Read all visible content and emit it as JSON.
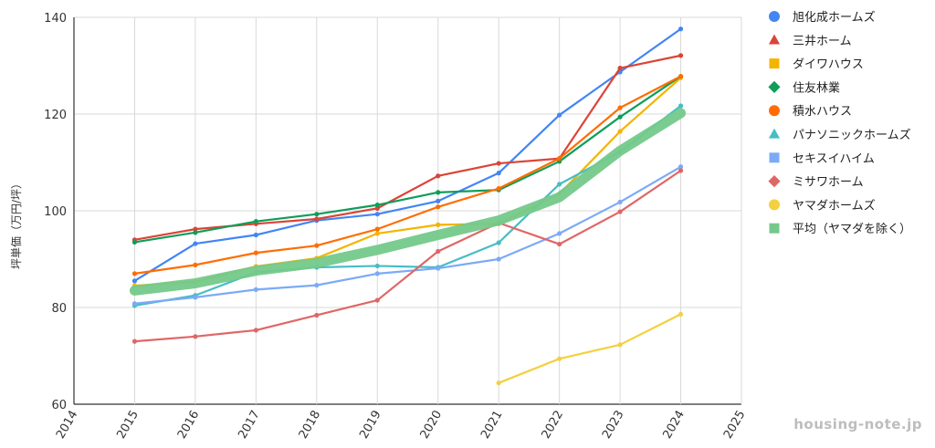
{
  "chart_data": {
    "type": "line",
    "title": "",
    "xlabel": "",
    "ylabel": "坪単価（万円/坪）",
    "xlim": [
      2014,
      2025
    ],
    "ylim": [
      60,
      140
    ],
    "xticks": [
      2014,
      2015,
      2016,
      2017,
      2018,
      2019,
      2020,
      2021,
      2022,
      2023,
      2024,
      2025
    ],
    "yticks": [
      60,
      80,
      100,
      120,
      140
    ],
    "grid": true,
    "legend_position": "right",
    "series": [
      {
        "name": "旭化成ホームズ",
        "color": "#4285f4",
        "marker": "circle",
        "x": [
          2015,
          2016,
          2017,
          2018,
          2019,
          2020,
          2021,
          2022,
          2023,
          2024
        ],
        "y": [
          85.5,
          93.2,
          95.0,
          98.0,
          99.3,
          102.0,
          107.8,
          119.8,
          128.7,
          137.6
        ]
      },
      {
        "name": "三井ホーム",
        "color": "#db4437",
        "marker": "triangle",
        "x": [
          2015,
          2016,
          2017,
          2018,
          2019,
          2020,
          2021,
          2022,
          2023,
          2024
        ],
        "y": [
          94.0,
          96.2,
          97.3,
          98.3,
          100.5,
          107.2,
          109.8,
          110.8,
          129.5,
          132.1
        ]
      },
      {
        "name": "ダイワハウス",
        "color": "#f4b400",
        "marker": "square",
        "x": [
          2015,
          2016,
          2017,
          2018,
          2019,
          2020,
          2021,
          2022,
          2023,
          2024
        ],
        "y": [
          84.5,
          85.3,
          88.5,
          90.2,
          95.3,
          97.1,
          97.3,
          103.5,
          116.4,
          127.5
        ]
      },
      {
        "name": "住友林業",
        "color": "#0f9d58",
        "marker": "diamond",
        "x": [
          2015,
          2016,
          2017,
          2018,
          2019,
          2020,
          2021,
          2022,
          2023,
          2024
        ],
        "y": [
          93.5,
          95.5,
          97.8,
          99.3,
          101.2,
          103.8,
          104.3,
          110.2,
          119.4,
          127.8
        ]
      },
      {
        "name": "積水ハウス",
        "color": "#ff6d00",
        "marker": "circle",
        "x": [
          2015,
          2016,
          2017,
          2018,
          2019,
          2020,
          2021,
          2022,
          2023,
          2024
        ],
        "y": [
          87.0,
          88.8,
          91.3,
          92.8,
          96.2,
          100.8,
          104.6,
          110.8,
          121.3,
          127.8
        ]
      },
      {
        "name": "パナソニックホームズ",
        "color": "#46bdc6",
        "marker": "triangle",
        "x": [
          2015,
          2016,
          2017,
          2018,
          2019,
          2020,
          2021,
          2022,
          2023,
          2024
        ],
        "y": [
          80.4,
          82.5,
          87.3,
          88.3,
          88.6,
          88.3,
          93.4,
          105.5,
          112.2,
          121.7
        ]
      },
      {
        "name": "セキスイハイム",
        "color": "#7baaf7",
        "marker": "square",
        "x": [
          2015,
          2016,
          2017,
          2018,
          2019,
          2020,
          2021,
          2022,
          2023,
          2024
        ],
        "y": [
          80.8,
          82.1,
          83.7,
          84.6,
          87.0,
          88.1,
          90.0,
          95.3,
          101.8,
          109.1
        ]
      },
      {
        "name": "ミサワホーム",
        "color": "#e06666",
        "marker": "diamond",
        "x": [
          2015,
          2016,
          2017,
          2018,
          2019,
          2020,
          2021,
          2022,
          2023,
          2024
        ],
        "y": [
          73.0,
          74.0,
          75.3,
          78.4,
          81.5,
          91.6,
          97.5,
          93.1,
          99.8,
          108.3
        ]
      },
      {
        "name": "ヤマダホームズ",
        "color": "#f4d03f",
        "marker": "circle",
        "x": [
          2021,
          2022,
          2023,
          2024
        ],
        "y": [
          64.4,
          69.4,
          72.3,
          78.6
        ]
      },
      {
        "name": "平均（ヤマダを除く）",
        "color": "#74c98a",
        "marker": "square",
        "thick": true,
        "x": [
          2015,
          2016,
          2017,
          2018,
          2019,
          2020,
          2021,
          2022,
          2023,
          2024
        ],
        "y": [
          83.5,
          85.0,
          87.6,
          89.2,
          91.9,
          95.0,
          98.0,
          102.8,
          112.4,
          120.2
        ]
      }
    ]
  },
  "watermark": "housing-note.jp"
}
